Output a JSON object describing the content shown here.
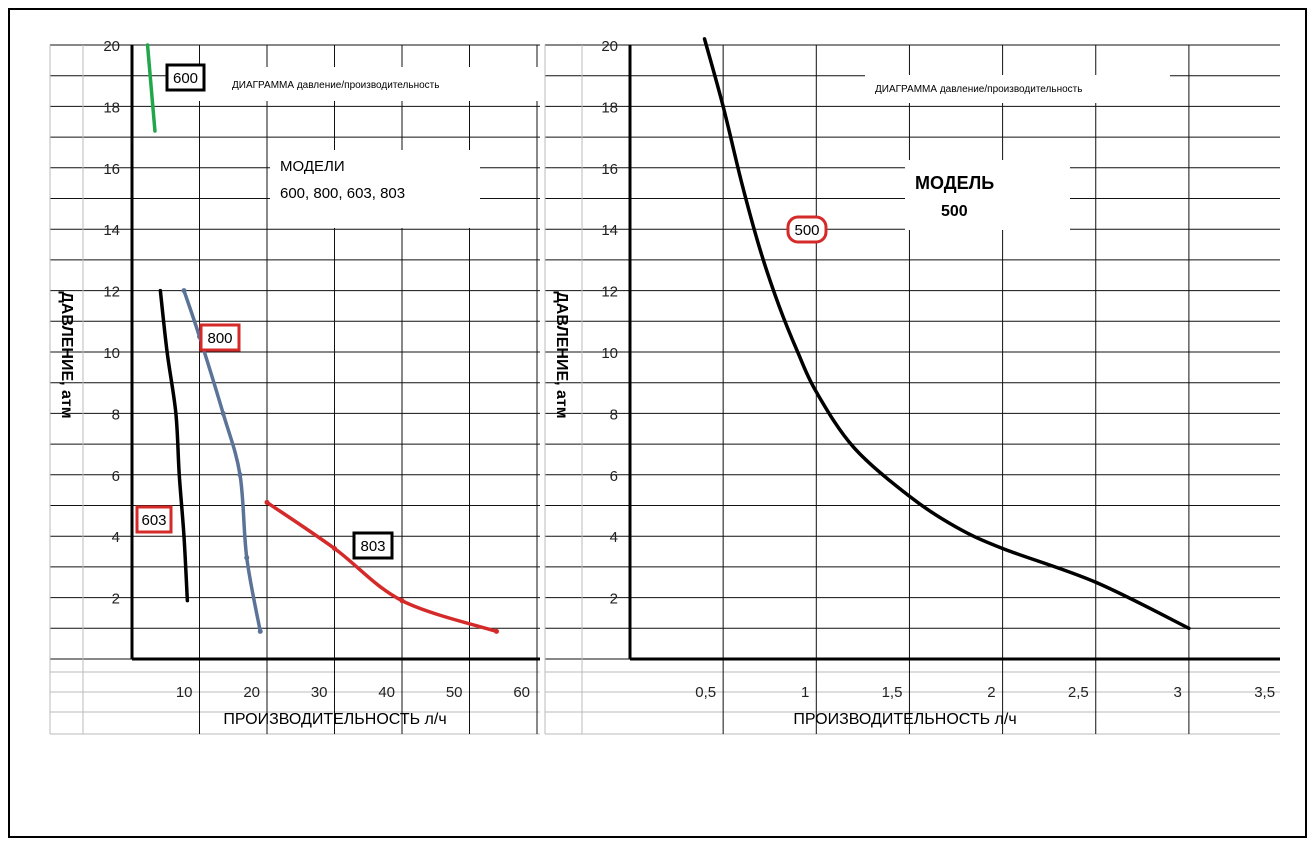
{
  "chart_data": [
    {
      "type": "line",
      "title": "ДИАГРАММА давление/производительность",
      "subtitle": "МОДЕЛИ 600, 800, 603, 803",
      "subtitle_lines": [
        "МОДЕЛИ",
        "600, 800, 603, 803"
      ],
      "xlabel": "ПРОИЗВОДИТЕЛЬНОСТЬ л/ч",
      "ylabel": "ДАВЛЕНИЕ, атм",
      "x_ticks": [
        "10",
        "20",
        "30",
        "40",
        "50",
        "60"
      ],
      "y_ticks": [
        "2",
        "4",
        "6",
        "8",
        "10",
        "12",
        "14",
        "16",
        "18",
        "20"
      ],
      "xlim": [
        0,
        60
      ],
      "ylim": [
        0,
        20
      ],
      "grid": true,
      "series": [
        {
          "name": "600",
          "color": "#22a64a",
          "x": [
            2.3,
            3.4
          ],
          "y": [
            20.0,
            17.2
          ]
        },
        {
          "name": "800",
          "color": "#5a7397",
          "x": [
            7.7,
            10.0,
            13.5,
            16.0,
            17.0,
            19.0
          ],
          "y": [
            12.0,
            10.5,
            8.0,
            6.0,
            3.3,
            0.9
          ],
          "markers": true
        },
        {
          "name": "603",
          "color": "#000000",
          "x": [
            4.2,
            5.2,
            6.5,
            7.0,
            7.7,
            8.2
          ],
          "y": [
            12.0,
            10.0,
            8.0,
            6.0,
            4.0,
            1.9
          ]
        },
        {
          "name": "803",
          "color": "#d42a2a",
          "x": [
            20.0,
            30.0,
            40.0,
            54.0
          ],
          "y": [
            5.1,
            3.6,
            1.9,
            0.9
          ],
          "markers": true
        }
      ]
    },
    {
      "type": "line",
      "title": "ДИАГРАММА давление/производительность",
      "subtitle": "МОДЕЛЬ 500",
      "subtitle_lines": [
        "МОДЕЛЬ",
        "500"
      ],
      "xlabel": "ПРОИЗВОДИТЕЛЬНОСТЬ л/ч",
      "ylabel": "ДАВЛЕНИЕ, атм",
      "x_ticks": [
        "0,5",
        "1",
        "1,5",
        "2",
        "2,5",
        "3",
        "3,5"
      ],
      "y_ticks": [
        "2",
        "4",
        "6",
        "8",
        "10",
        "12",
        "14",
        "16",
        "18",
        "20"
      ],
      "xlim": [
        0,
        3.5
      ],
      "ylim": [
        0,
        20
      ],
      "grid": true,
      "series": [
        {
          "name": "500",
          "color": "#000000",
          "x": [
            0.4,
            0.5,
            0.6,
            0.7,
            0.8,
            0.9,
            1.0,
            1.2,
            1.5,
            1.75,
            2.0,
            2.5,
            3.0
          ],
          "y": [
            20.2,
            18.0,
            15.5,
            13.3,
            11.5,
            10.0,
            8.7,
            6.9,
            5.3,
            4.3,
            3.6,
            2.5,
            1.0
          ]
        }
      ]
    }
  ]
}
